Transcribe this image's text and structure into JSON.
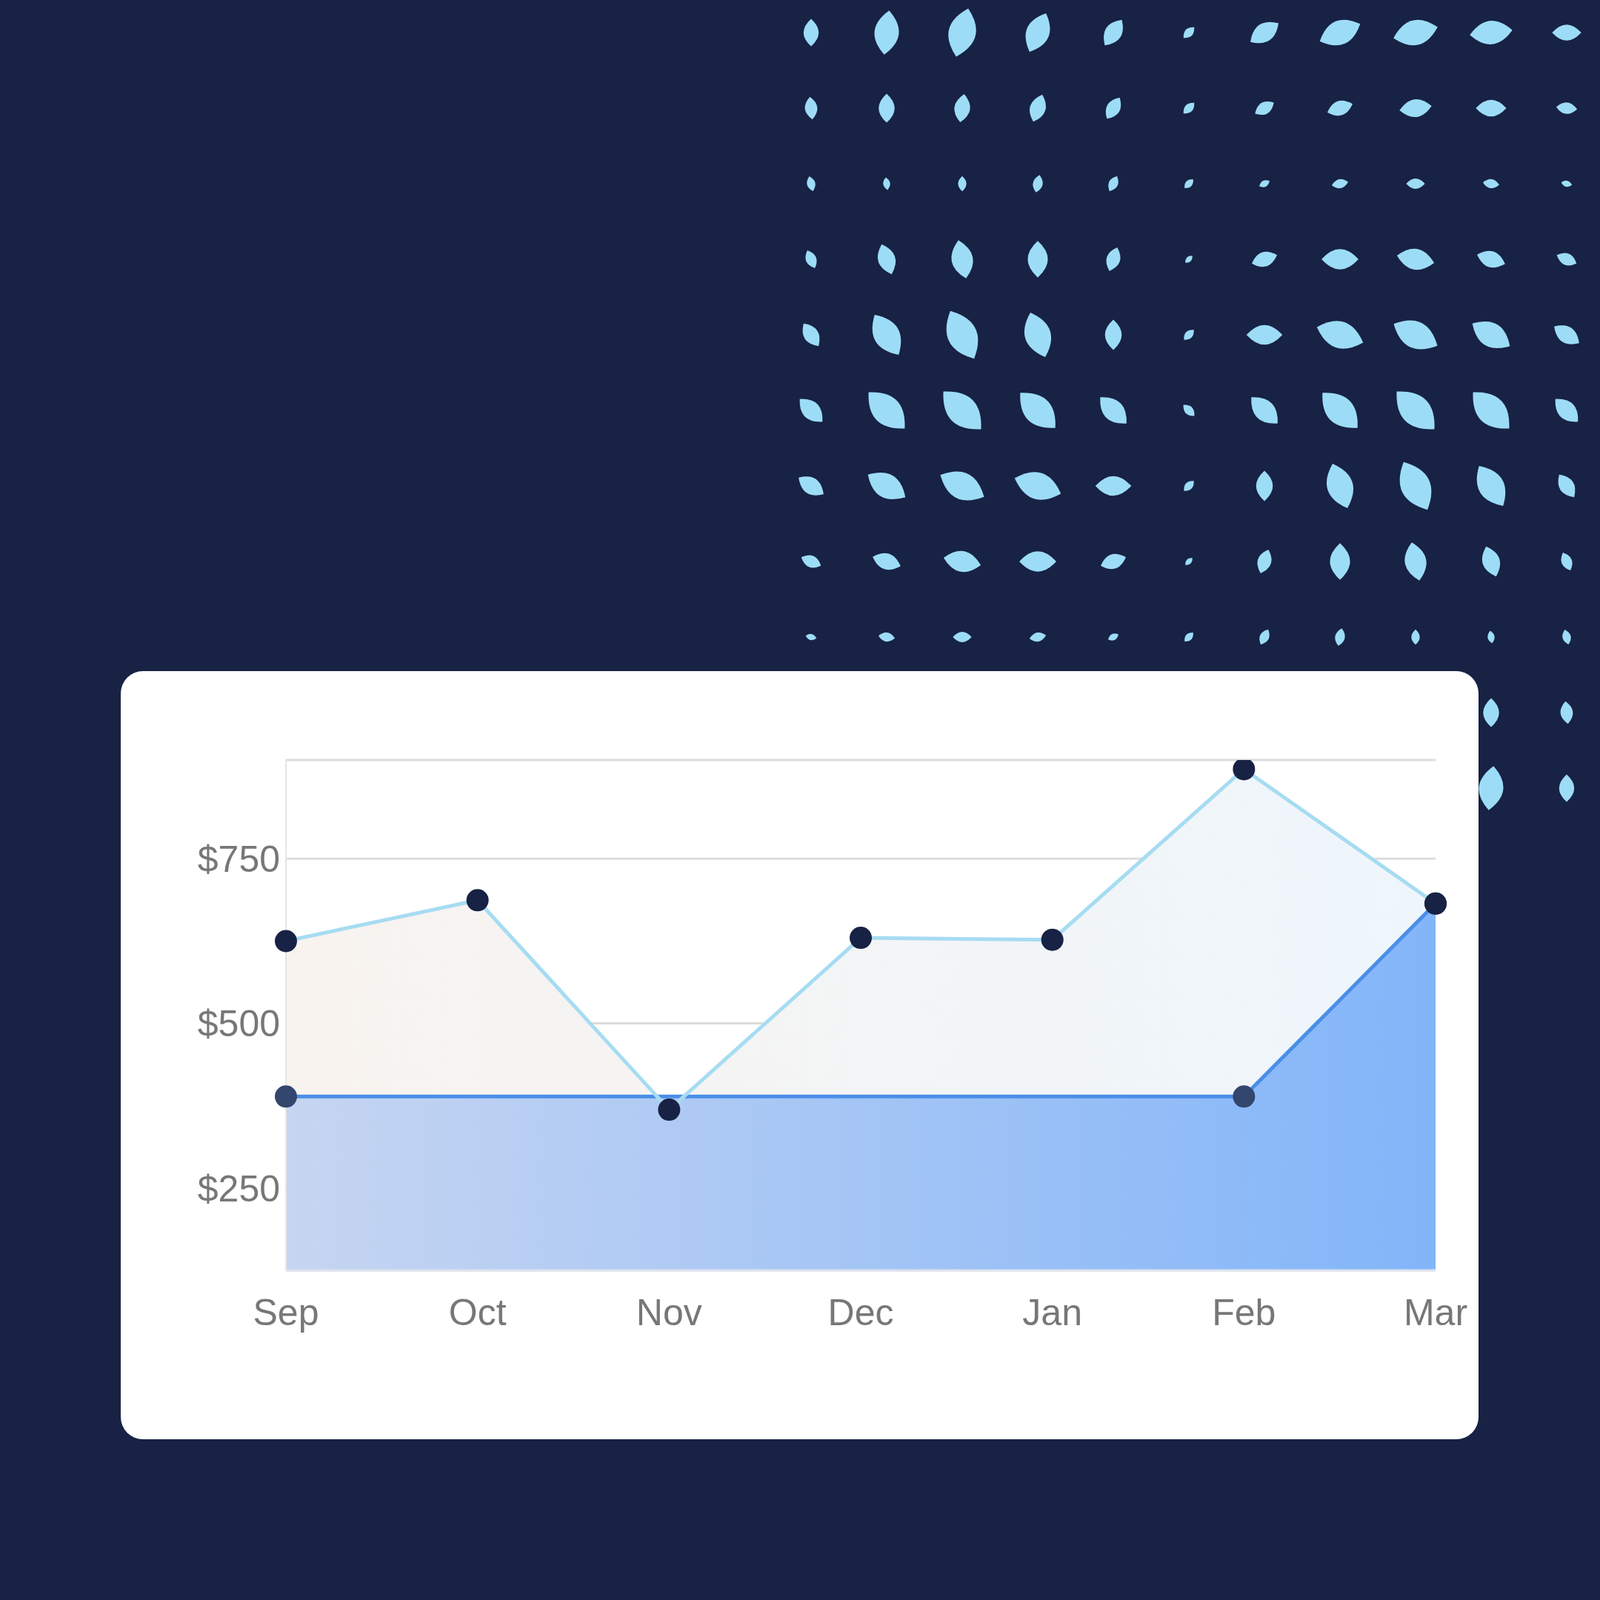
{
  "chart_data": {
    "type": "area",
    "categories": [
      "Sep",
      "Oct",
      "Nov",
      "Dec",
      "Jan",
      "Feb",
      "Mar"
    ],
    "series": [
      {
        "color": "#a6dcf2",
        "values": [
          625,
          687,
          369,
          630,
          627,
          886,
          682
        ]
      },
      {
        "color": "#4a8ee8",
        "values": [
          389,
          389,
          389,
          389,
          389,
          389,
          682
        ]
      }
    ],
    "ylim": [
      125,
      900
    ],
    "yticks": [
      {
        "value": 250,
        "label": "$250"
      },
      {
        "value": 500,
        "label": "$500"
      },
      {
        "value": 750,
        "label": "$750"
      }
    ],
    "grid": true
  }
}
